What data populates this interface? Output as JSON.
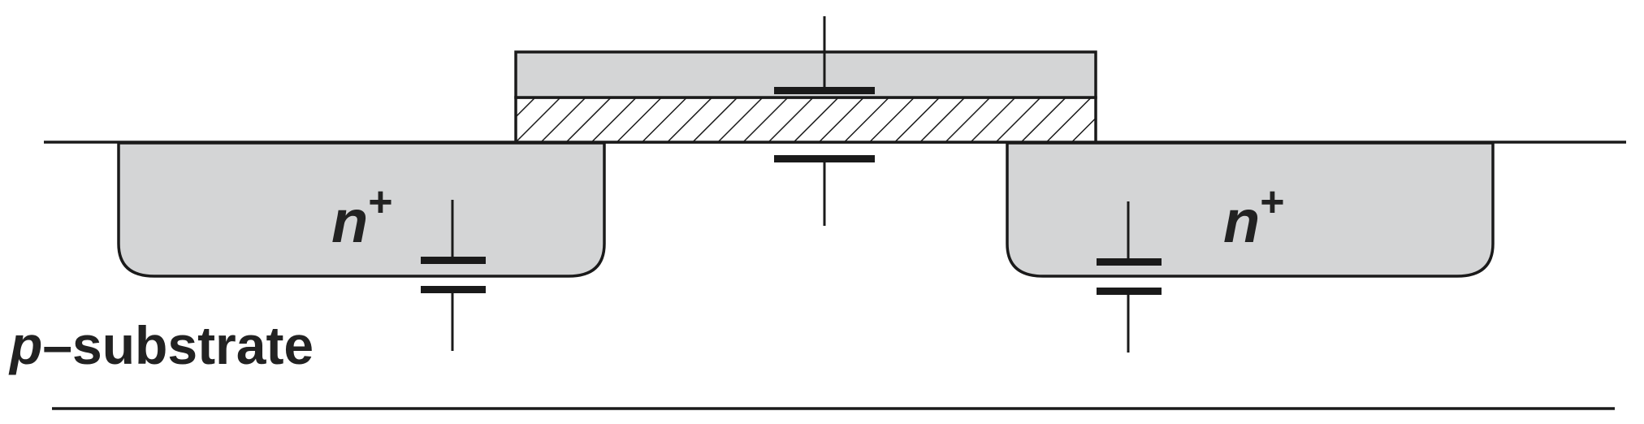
{
  "diagram": {
    "left_region_label": {
      "base": "n",
      "sup": "+"
    },
    "right_region_label": {
      "base": "n",
      "sup": "+"
    },
    "substrate_label": {
      "prefix": "p",
      "text": "–substrate"
    },
    "colors": {
      "stroke": "#1a1a1a",
      "diffusion_fill": "#d4d5d6",
      "gate_fill": "#d4d5d6",
      "oxide_hatch": "#1a1a1a",
      "background": "#ffffff"
    }
  }
}
